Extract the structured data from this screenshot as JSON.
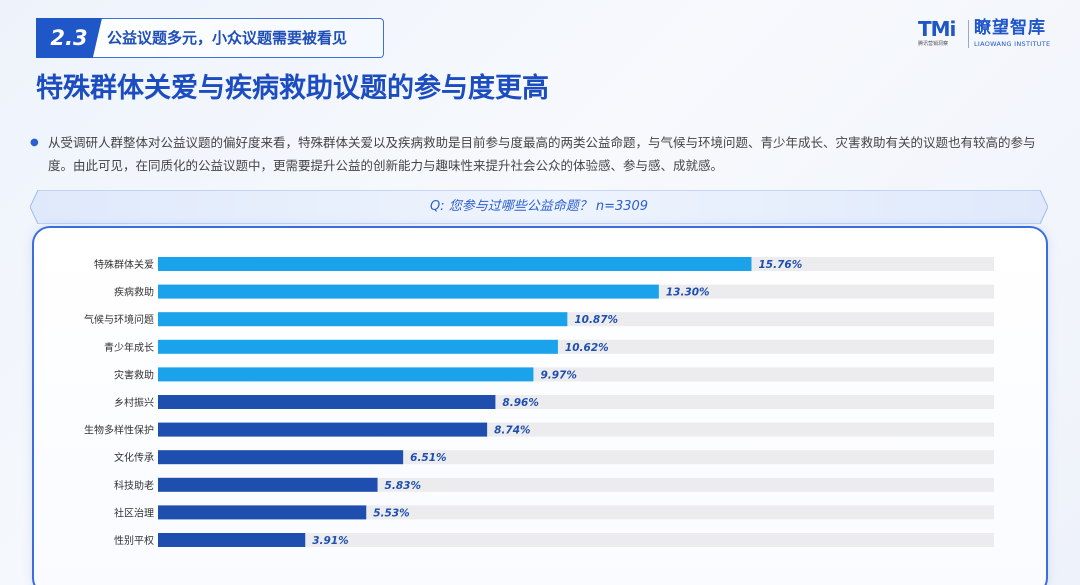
{
  "section": {
    "number": "2.3",
    "title": "公益议题多元，小众议题需要被看见"
  },
  "logos": {
    "tmi_text": "TMi",
    "tmi_sub": "腾讯营销洞察",
    "lw_cn": "瞭望智库",
    "lw_en": "LIAOWANG INSTITUTE"
  },
  "main_title": "特殊群体关爱与疾病救助议题的参与度更高",
  "description": "从受调研人群整体对公益议题的偏好度来看，特殊群体关爱以及疾病救助是目前参与度最高的两类公益命题，与气候与环境问题、青少年成长、灾害救助有关的议题也有较高的参与度。由此可见，在同质化的公益议题中，更需要提升公益的创新能力与趣味性来提升社会公众的体验感、参与感、成就感。",
  "question": "Q: 您参与过哪些公益命题？ n=3309",
  "colors": {
    "bar_light": "#1aa3ea",
    "bar_dark": "#1e4fae",
    "track": "#ececef",
    "value_label": "#1e4fae",
    "accent": "#1f56c8"
  },
  "chart_data": {
    "type": "bar",
    "orientation": "horizontal",
    "categories": [
      "特殊群体关爱",
      "疾病救助",
      "气候与环境问题",
      "青少年成长",
      "灾害救助",
      "乡村振兴",
      "生物多样性保护",
      "文化传承",
      "科技助老",
      "社区治理",
      "性别平权"
    ],
    "values": [
      15.76,
      13.3,
      10.87,
      10.62,
      9.97,
      8.96,
      8.74,
      6.51,
      5.83,
      5.53,
      3.91
    ],
    "value_labels": [
      "15.76%",
      "13.30%",
      "10.87%",
      "10.62%",
      "9.97%",
      "8.96%",
      "8.74%",
      "6.51%",
      "5.83%",
      "5.53%",
      "3.91%"
    ],
    "highlight_top_n": 5,
    "xlim": [
      0,
      22.2
    ],
    "title": "",
    "xlabel": "",
    "ylabel": "",
    "grid": false,
    "legend": "none"
  }
}
